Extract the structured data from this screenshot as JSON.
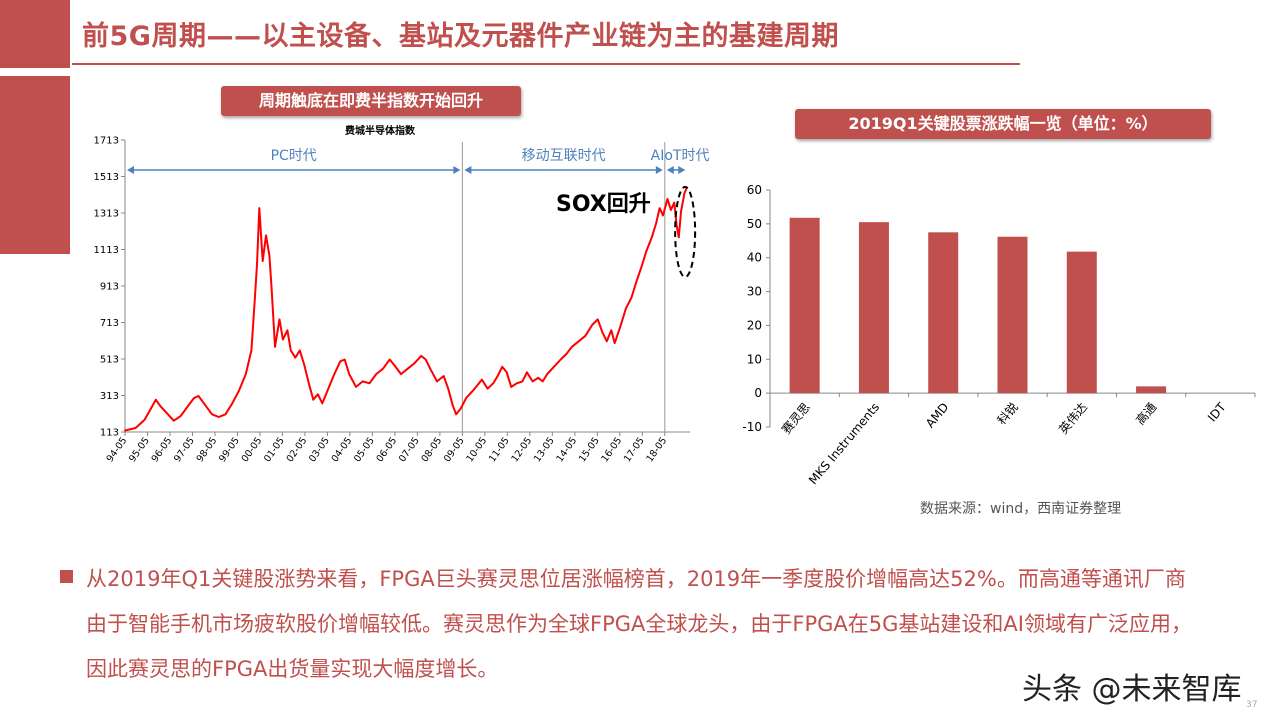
{
  "header": {
    "title": "前5G周期——以主设备、基站及元器件产业链为主的基建周期"
  },
  "left_tag": "周期触底在即费半指数开始回升",
  "right_tag": "2019Q1关键股票涨跌幅一览（单位：%）",
  "source": "数据来源：wind，西南证券整理",
  "paragraph": "从2019年Q1关键股涨势来看，FPGA巨头赛灵思位居涨幅榜首，2019年一季度股价增幅高达52%。而高通等通讯厂商由于智能手机市场疲软股价增幅较低。赛灵思作为全球FPGA全球龙头，由于FPGA在5G基站建设和AI领域有广泛应用，因此赛灵思的FPGA出货量实现大幅度增长。",
  "watermark": "头条 @未来智库",
  "page_number": "37",
  "colors": {
    "accent": "#c0504d",
    "line": "#ff0000"
  },
  "chart_data": [
    {
      "type": "line",
      "title": "费城半导体指数",
      "ylim": [
        113,
        1713
      ],
      "yticks": [
        113,
        313,
        513,
        713,
        913,
        1113,
        1313,
        1513,
        1713
      ],
      "x": [
        "94-05",
        "95-05",
        "96-05",
        "97-05",
        "98-05",
        "99-05",
        "00-05",
        "01-05",
        "02-05",
        "03-05",
        "04-05",
        "05-05",
        "06-05",
        "07-05",
        "08-05",
        "09-05",
        "10-05",
        "11-05",
        "12-05",
        "13-05",
        "14-05",
        "15-05",
        "16-05",
        "17-05",
        "18-05"
      ],
      "eras": [
        {
          "label": "PC时代",
          "from": "94-05",
          "to": "09-05"
        },
        {
          "label": "移动互联时代",
          "from": "09-05",
          "to": "18-05"
        },
        {
          "label": "AIoT时代",
          "from": "18-05",
          "to": "19-05"
        }
      ],
      "annotations": [
        "SOX回升"
      ],
      "series": [
        {
          "values": [
            [
              1994.3,
              120
            ],
            [
              1994.8,
              135
            ],
            [
              1995.2,
              180
            ],
            [
              1995.5,
              245
            ],
            [
              1995.7,
              290
            ],
            [
              1995.9,
              255
            ],
            [
              1996.2,
              215
            ],
            [
              1996.5,
              175
            ],
            [
              1996.8,
              200
            ],
            [
              1997.1,
              250
            ],
            [
              1997.4,
              300
            ],
            [
              1997.6,
              310
            ],
            [
              1997.9,
              260
            ],
            [
              1998.2,
              210
            ],
            [
              1998.5,
              195
            ],
            [
              1998.8,
              210
            ],
            [
              1999.1,
              270
            ],
            [
              1999.4,
              340
            ],
            [
              1999.7,
              430
            ],
            [
              1999.95,
              560
            ],
            [
              2000.1,
              840
            ],
            [
              2000.2,
              1030
            ],
            [
              2000.3,
              1340
            ],
            [
              2000.45,
              1050
            ],
            [
              2000.6,
              1190
            ],
            [
              2000.75,
              1080
            ],
            [
              2000.85,
              900
            ],
            [
              2001.0,
              580
            ],
            [
              2001.2,
              730
            ],
            [
              2001.35,
              620
            ],
            [
              2001.55,
              670
            ],
            [
              2001.7,
              560
            ],
            [
              2001.9,
              520
            ],
            [
              2002.1,
              560
            ],
            [
              2002.3,
              480
            ],
            [
              2002.5,
              380
            ],
            [
              2002.7,
              290
            ],
            [
              2002.9,
              320
            ],
            [
              2003.1,
              270
            ],
            [
              2003.3,
              330
            ],
            [
              2003.6,
              420
            ],
            [
              2003.9,
              500
            ],
            [
              2004.1,
              510
            ],
            [
              2004.3,
              430
            ],
            [
              2004.6,
              360
            ],
            [
              2004.9,
              390
            ],
            [
              2005.2,
              380
            ],
            [
              2005.5,
              430
            ],
            [
              2005.8,
              460
            ],
            [
              2006.1,
              510
            ],
            [
              2006.3,
              480
            ],
            [
              2006.6,
              430
            ],
            [
              2006.9,
              460
            ],
            [
              2007.2,
              490
            ],
            [
              2007.5,
              530
            ],
            [
              2007.7,
              510
            ],
            [
              2007.9,
              460
            ],
            [
              2008.2,
              390
            ],
            [
              2008.5,
              420
            ],
            [
              2008.7,
              350
            ],
            [
              2008.9,
              260
            ],
            [
              2009.05,
              210
            ],
            [
              2009.25,
              240
            ],
            [
              2009.5,
              300
            ],
            [
              2009.8,
              340
            ],
            [
              2010.0,
              370
            ],
            [
              2010.2,
              400
            ],
            [
              2010.45,
              350
            ],
            [
              2010.7,
              380
            ],
            [
              2010.9,
              420
            ],
            [
              2011.1,
              470
            ],
            [
              2011.3,
              440
            ],
            [
              2011.5,
              360
            ],
            [
              2011.75,
              380
            ],
            [
              2012.0,
              390
            ],
            [
              2012.2,
              440
            ],
            [
              2012.45,
              390
            ],
            [
              2012.7,
              410
            ],
            [
              2012.9,
              390
            ],
            [
              2013.1,
              430
            ],
            [
              2013.4,
              470
            ],
            [
              2013.7,
              510
            ],
            [
              2013.95,
              540
            ],
            [
              2014.2,
              580
            ],
            [
              2014.5,
              610
            ],
            [
              2014.8,
              640
            ],
            [
              2015.1,
              700
            ],
            [
              2015.35,
              730
            ],
            [
              2015.55,
              660
            ],
            [
              2015.75,
              610
            ],
            [
              2015.95,
              670
            ],
            [
              2016.1,
              600
            ],
            [
              2016.35,
              690
            ],
            [
              2016.6,
              790
            ],
            [
              2016.85,
              850
            ],
            [
              2017.05,
              930
            ],
            [
              2017.3,
              1020
            ],
            [
              2017.5,
              1100
            ],
            [
              2017.75,
              1180
            ],
            [
              2017.95,
              1260
            ],
            [
              2018.1,
              1340
            ],
            [
              2018.25,
              1300
            ],
            [
              2018.45,
              1390
            ],
            [
              2018.6,
              1330
            ],
            [
              2018.75,
              1370
            ],
            [
              2018.85,
              1250
            ],
            [
              2018.95,
              1180
            ],
            [
              2019.05,
              1320
            ],
            [
              2019.2,
              1420
            ],
            [
              2019.3,
              1450
            ]
          ]
        }
      ]
    },
    {
      "type": "bar",
      "categories": [
        "赛灵思",
        "MKS Instruments",
        "AMD",
        "科锐",
        "英伟达",
        "高通",
        "IDT"
      ],
      "values": [
        51.8,
        50.5,
        47.5,
        46.2,
        41.8,
        2.0,
        0.0
      ],
      "ylim": [
        -10,
        60
      ],
      "yticks": [
        -10,
        0,
        10,
        20,
        30,
        40,
        50,
        60
      ],
      "color": "#c0504d"
    }
  ]
}
